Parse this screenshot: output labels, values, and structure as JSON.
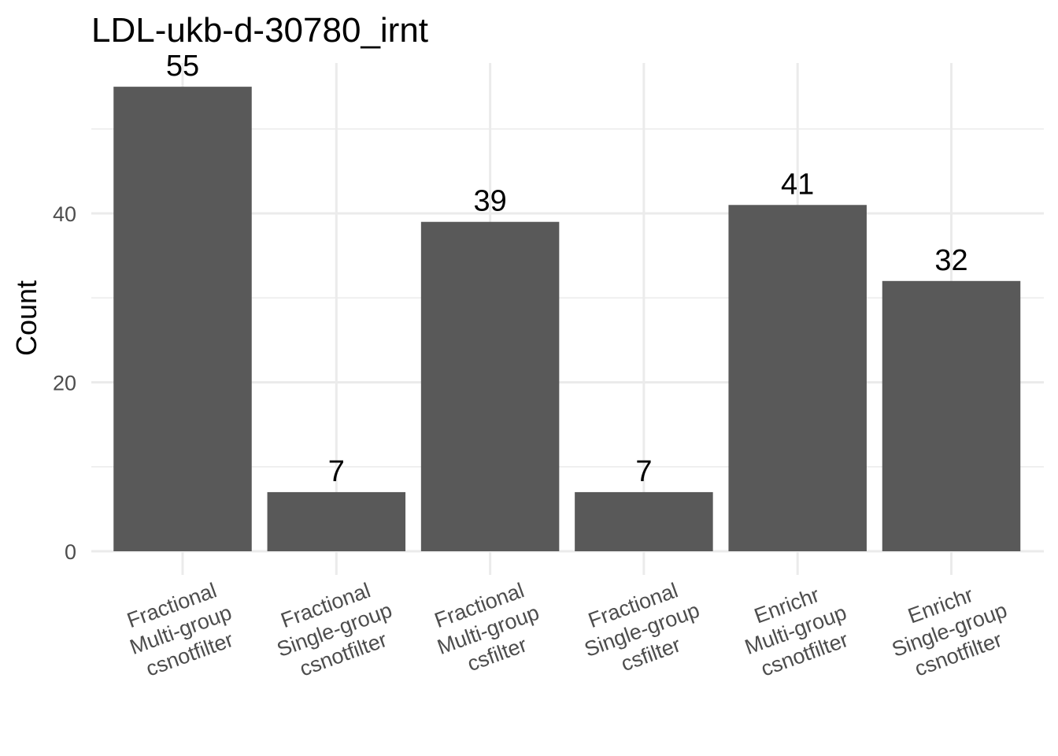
{
  "chart_data": {
    "type": "bar",
    "title": "LDL-ukb-d-30780_irnt",
    "xlabel": "",
    "ylabel": "Count",
    "ylim": [
      0,
      57
    ],
    "yticks": [
      0,
      20,
      40
    ],
    "grid": true,
    "bar_color": "#595959",
    "categories": [
      [
        "Fractional",
        "Multi-group",
        "csnotfilter"
      ],
      [
        "Fractional",
        "Single-group",
        "csnotfilter"
      ],
      [
        "Fractional",
        "Multi-group",
        "csfilter"
      ],
      [
        "Fractional",
        "Single-group",
        "csfilter"
      ],
      [
        "Enrichr",
        "Multi-group",
        "csnotfilter"
      ],
      [
        "Enrichr",
        "Single-group",
        "csnotfilter"
      ]
    ],
    "values": [
      55,
      7,
      39,
      7,
      41,
      32
    ]
  }
}
